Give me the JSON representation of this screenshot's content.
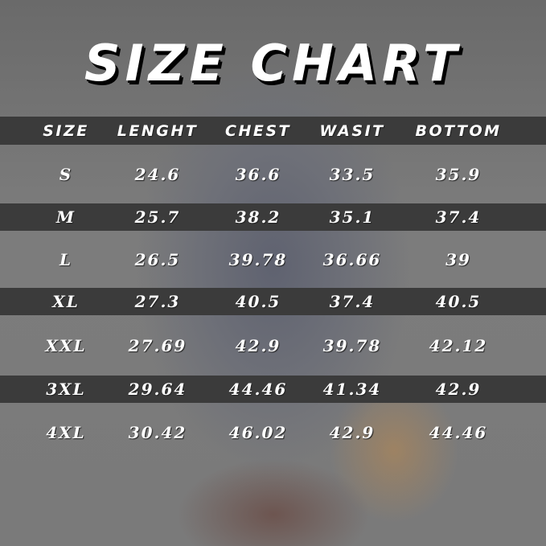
{
  "title": "SIZE CHART",
  "headers": [
    "SIZE",
    "LENGHT",
    "CHEST",
    "WASIT",
    "BOTTOM"
  ],
  "rows": [
    [
      "S",
      "24.6",
      "36.6",
      "33.5",
      "35.9"
    ],
    [
      "M",
      "25.7",
      "38.2",
      "35.1",
      "37.4"
    ],
    [
      "L",
      "26.5",
      "39.78",
      "36.66",
      "39"
    ],
    [
      "XL",
      "27.3",
      "40.5",
      "37.4",
      "40.5"
    ],
    [
      "XXL",
      "27.69",
      "42.9",
      "39.78",
      "42.12"
    ],
    [
      "3XL",
      "29.64",
      "44.46",
      "41.34",
      "42.9"
    ],
    [
      "4XL",
      "30.42",
      "46.02",
      "42.9",
      "44.46"
    ]
  ],
  "colors": {
    "band": "#3b3b3b",
    "text": "#ffffff",
    "background": "#7d7d7d"
  }
}
